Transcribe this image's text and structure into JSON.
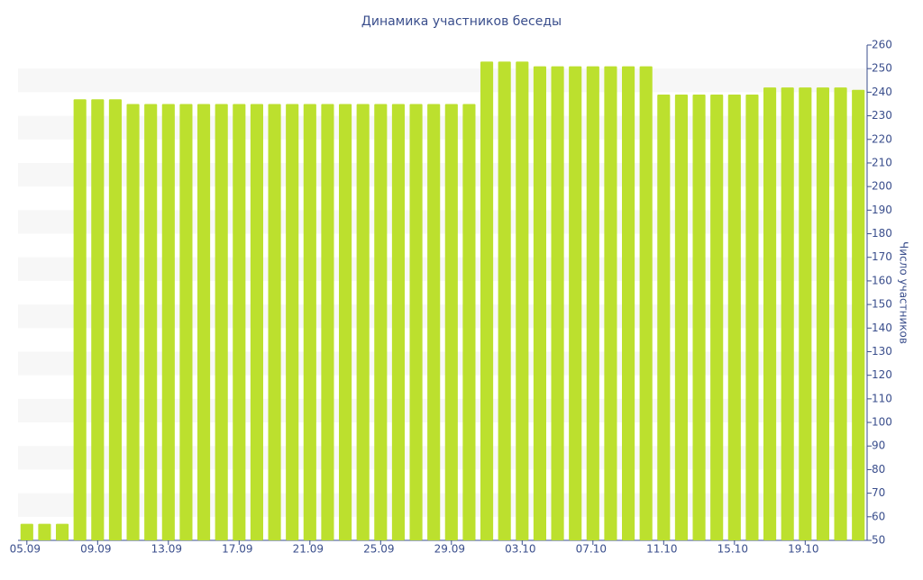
{
  "chart_data": {
    "type": "bar",
    "title": "Динамика участников беседы",
    "ylabel": "Число участников",
    "categories": [
      "05.09",
      null,
      null,
      null,
      "09.09",
      null,
      null,
      null,
      "13.09",
      null,
      null,
      null,
      "17.09",
      null,
      null,
      null,
      "21.09",
      null,
      null,
      null,
      "25.09",
      null,
      null,
      null,
      "29.09",
      null,
      null,
      null,
      "03.10",
      null,
      null,
      null,
      "07.10",
      null,
      null,
      null,
      "11.10",
      null,
      null,
      null,
      "15.10",
      null,
      null,
      null,
      "19.10",
      null,
      null,
      null
    ],
    "values": [
      57,
      57,
      57,
      237,
      237,
      237,
      235,
      235,
      235,
      235,
      235,
      235,
      235,
      235,
      235,
      235,
      235,
      235,
      235,
      235,
      235,
      235,
      235,
      235,
      235,
      235,
      253,
      253,
      253,
      251,
      251,
      251,
      251,
      251,
      251,
      251,
      239,
      239,
      239,
      239,
      239,
      239,
      242,
      242,
      242,
      242,
      242,
      241
    ],
    "color": "#bce02e",
    "ylim": [
      50,
      260
    ],
    "yticks": [
      50,
      60,
      70,
      80,
      90,
      100,
      110,
      120,
      130,
      140,
      150,
      160,
      170,
      180,
      190,
      200,
      210,
      220,
      230,
      240,
      250,
      260
    ],
    "grid": true
  }
}
